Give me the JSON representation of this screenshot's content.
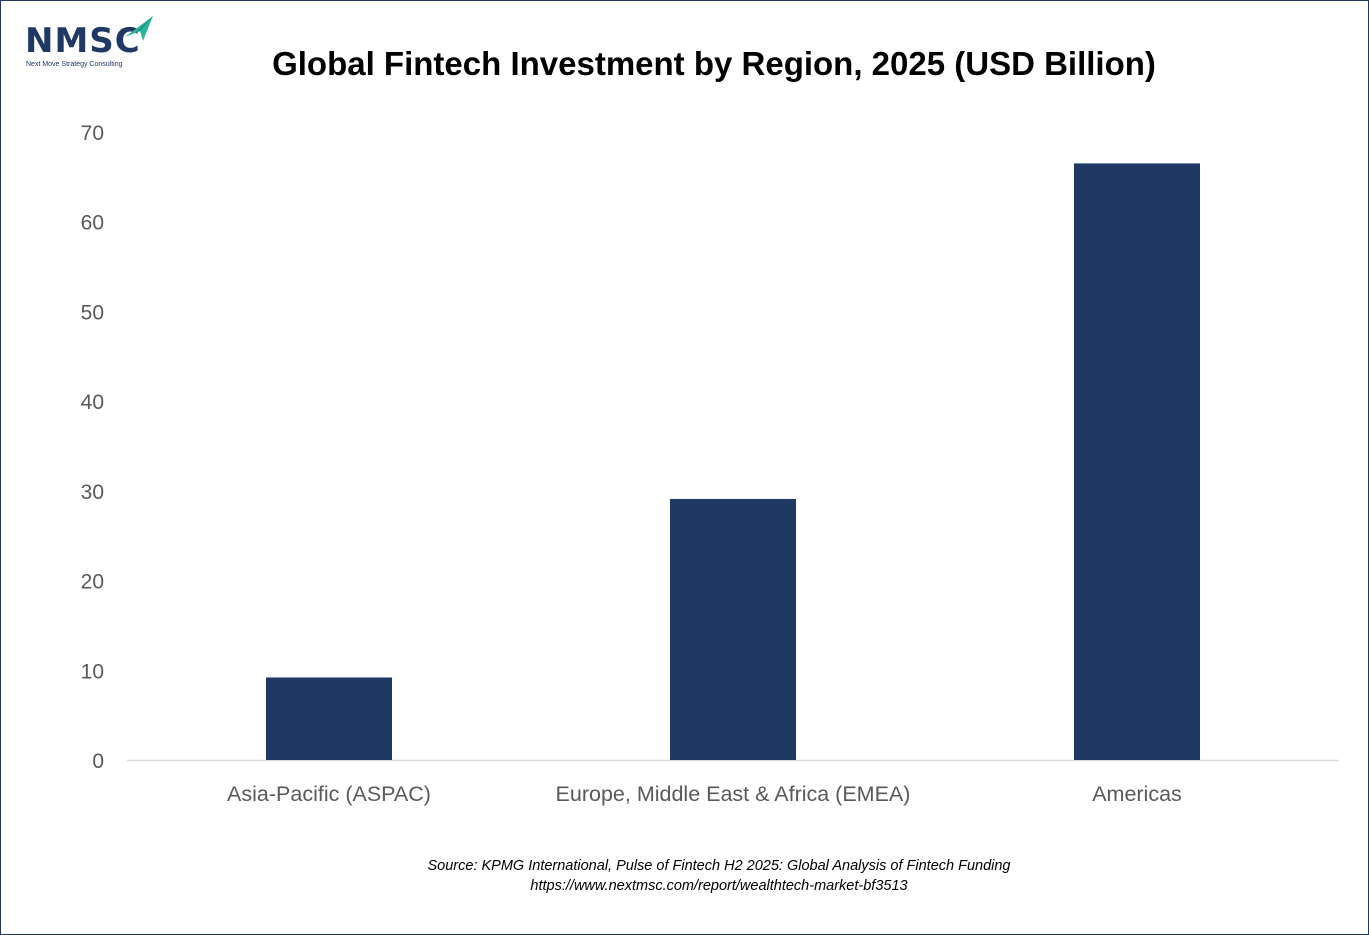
{
  "logo": {
    "text": "NMSC",
    "tagline": "Next Move Strategy Consulting"
  },
  "chart_data": {
    "type": "bar",
    "title": "Global Fintech Investment by Region, 2025 (USD Billion)",
    "categories": [
      "Asia-Pacific (ASPAC)",
      "Europe, Middle East & Africa (EMEA)",
      "Americas"
    ],
    "values": [
      9.2,
      29.1,
      66.5
    ],
    "xlabel": "",
    "ylabel": "",
    "ylim": [
      0,
      70
    ],
    "yticks": [
      0,
      10,
      20,
      30,
      40,
      50,
      60,
      70
    ],
    "grid": false,
    "legend": "none",
    "bar_color": "#203864"
  },
  "source": {
    "line1": "Source: KPMG International, Pulse of Fintech H2 2025: Global Analysis of Fintech Funding",
    "line2": "https://www.nextmsc.com/report/wealthtech-market-bf3513"
  },
  "colors": {
    "brand": "#1f3864",
    "accent": "#2bb59a"
  }
}
